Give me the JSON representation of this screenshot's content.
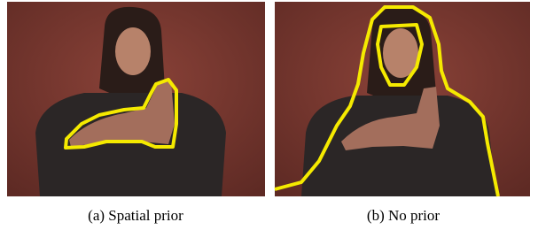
{
  "figure": {
    "panels": [
      {
        "caption": "(a) Spatial prior"
      },
      {
        "caption": "(b) No prior"
      }
    ]
  }
}
